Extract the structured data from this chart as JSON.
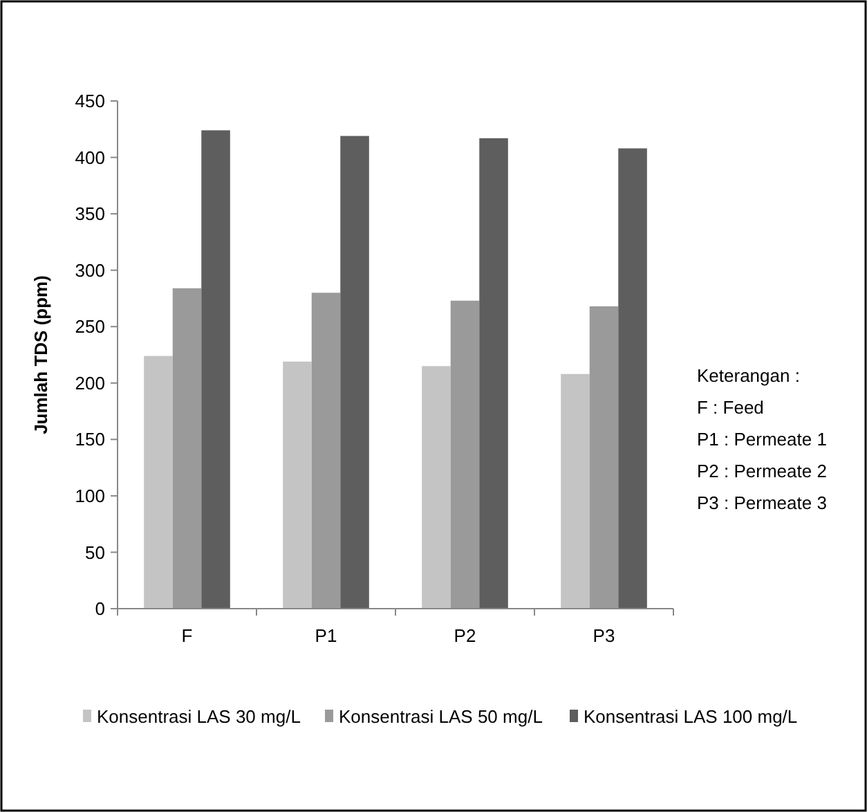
{
  "chart_data": {
    "type": "bar",
    "ylabel": "Jumlah TDS (ppm)",
    "categories": [
      "F",
      "P1",
      "P2",
      "P3"
    ],
    "series": [
      {
        "name": "Konsentrasi LAS 30 mg/L",
        "color": "#c4c4c4",
        "values": [
          224,
          219,
          215,
          208
        ]
      },
      {
        "name": "Konsentrasi LAS 50 mg/L",
        "color": "#9a9a9a",
        "values": [
          284,
          280,
          273,
          268
        ]
      },
      {
        "name": "Konsentrasi LAS 100 mg/L",
        "color": "#5e5e5e",
        "values": [
          424,
          419,
          417,
          408
        ]
      }
    ],
    "ylim": [
      0,
      450
    ],
    "yticks": [
      0,
      50,
      100,
      150,
      200,
      250,
      300,
      350,
      400,
      450
    ],
    "grid": false,
    "legend": "bottom",
    "annotations": [
      "Keterangan :",
      "F : Feed",
      "P1 : Permeate 1",
      "P2 : Permeate 2",
      "P3 : Permeate 3"
    ]
  }
}
